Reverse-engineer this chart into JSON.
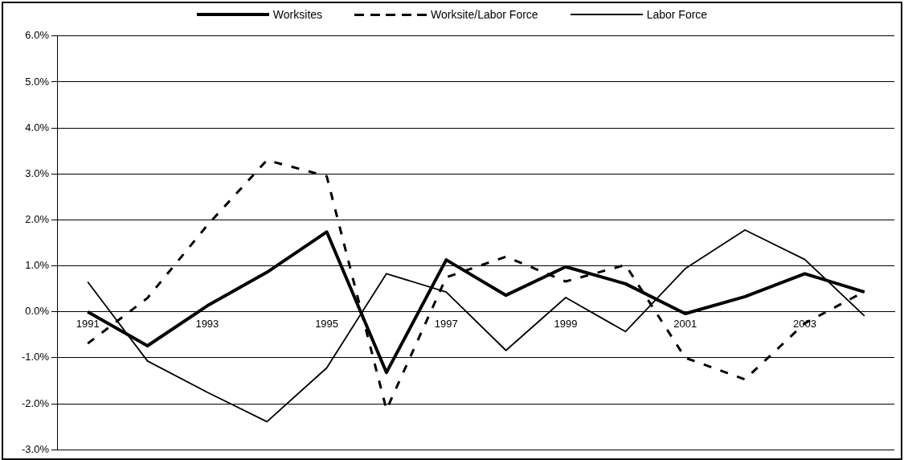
{
  "chart_data": {
    "type": "line",
    "categories": [
      "1991",
      null,
      "1993",
      null,
      "1995",
      null,
      "1997",
      null,
      "1999",
      null,
      "2001",
      null,
      "2003",
      null
    ],
    "series": [
      {
        "name": "Worksites",
        "color": "#000000",
        "line_style": "solid",
        "values": [
          0.0,
          -0.74,
          0.13,
          0.86,
          1.74,
          -1.32,
          1.13,
          0.36,
          0.98,
          0.61,
          -0.04,
          0.33,
          0.83,
          0.43
        ]
      },
      {
        "name": "Worksite/Labor Force",
        "color": "#000000",
        "line_style": "dashed",
        "values": [
          -0.69,
          0.3,
          1.88,
          3.3,
          2.95,
          -2.13,
          0.75,
          1.2,
          0.66,
          1.02,
          -1.0,
          -1.47,
          -0.25,
          0.44
        ]
      },
      {
        "name": "Labor Force",
        "color": "#000000",
        "line_style": "solid",
        "values": [
          0.65,
          -1.07,
          -1.75,
          -2.39,
          -1.22,
          0.83,
          0.43,
          -0.84,
          0.31,
          -0.43,
          0.94,
          1.78,
          1.14,
          -0.09
        ]
      }
    ],
    "ylim": [
      -3,
      6
    ],
    "yticks": [
      {
        "value": -3,
        "label": "-3.0%"
      },
      {
        "value": -2,
        "label": "-2.0%"
      },
      {
        "value": -1,
        "label": "-1.0%"
      },
      {
        "value": 0,
        "label": "0.0%"
      },
      {
        "value": 1,
        "label": "1.0%"
      },
      {
        "value": 2,
        "label": "2.0%"
      },
      {
        "value": 3,
        "label": "3.0%"
      },
      {
        "value": 4,
        "label": "4.0%"
      },
      {
        "value": 5,
        "label": "5.0%"
      },
      {
        "value": 6,
        "label": "6.0%"
      }
    ],
    "grid": "y",
    "legend": "top",
    "marker": "none"
  }
}
